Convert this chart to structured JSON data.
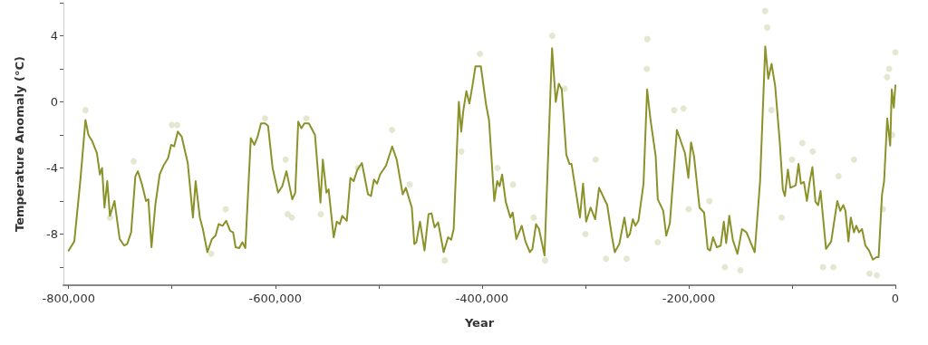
{
  "chart_data": {
    "type": "line",
    "xlabel": "Year",
    "ylabel": "Temperature Anomaly (°C)",
    "xlim": [
      -805000,
      0
    ],
    "ylim": [
      -11.1,
      6
    ],
    "xticks": [
      {
        "value": -800000,
        "label": "-800,000"
      },
      {
        "value": -700000,
        "label": null
      },
      {
        "value": -600000,
        "label": "-600,000"
      },
      {
        "value": -500000,
        "label": null
      },
      {
        "value": -400000,
        "label": "-400,000"
      },
      {
        "value": -300000,
        "label": null
      },
      {
        "value": -200000,
        "label": "-200,000"
      },
      {
        "value": -100000,
        "label": null
      },
      0
    ],
    "yticks": [
      {
        "value": 6,
        "label": null
      },
      4,
      {
        "value": 2,
        "label": null
      },
      0,
      {
        "value": -2,
        "label": null
      },
      -4,
      {
        "value": -6,
        "label": null
      },
      -8,
      {
        "value": -10,
        "label": null
      }
    ],
    "grid": false,
    "marker": "none",
    "line_style": "solid",
    "series": [
      {
        "type": "scatter",
        "color": "#e4e8d0",
        "x": [
          -783700,
          -737000,
          -695000,
          -700000,
          -662000,
          -648000,
          -610000,
          -590000,
          -588000,
          -584000,
          -570000,
          -556000,
          -520000,
          -487000,
          -470000,
          -436000,
          -420000,
          -402000,
          -385000,
          -370000,
          -350000,
          -339000,
          -332000,
          -320000,
          -300000,
          -290000,
          -280000,
          -260000,
          -240000,
          -240500,
          -230000,
          -214000,
          -205000,
          -200000,
          -180000,
          -165000,
          -150000,
          -126000,
          -124000,
          -120000,
          -110000,
          -100000,
          -90000,
          -80000,
          -70000,
          -60000,
          -55000,
          -40000,
          -25000,
          -18000,
          -12000,
          -8000,
          -6000,
          -3000,
          0,
          -760000
        ],
        "values": [
          -0.5,
          -3.6,
          -1.4,
          -1.4,
          -9.2,
          -6.5,
          -1.0,
          -3.5,
          -6.8,
          -7.0,
          -1.0,
          -6.8,
          -4.0,
          -1.7,
          -5.0,
          -9.6,
          -3.0,
          2.9,
          -4.0,
          -5.0,
          -7.0,
          -9.6,
          4.0,
          0.8,
          -8.0,
          -3.5,
          -9.5,
          -9.5,
          3.8,
          2.0,
          -8.5,
          -0.5,
          -0.4,
          -6.5,
          -6.0,
          -10.0,
          -10.2,
          5.5,
          4.5,
          -0.5,
          -7.0,
          -3.5,
          -2.5,
          -3.0,
          -10.0,
          -10.0,
          -4.5,
          -3.5,
          -10.4,
          -10.5,
          -6.5,
          1.5,
          2.0,
          -2.0,
          3.0,
          -7.0
        ]
      },
      {
        "color": "#8b922a",
        "x": [
          -800000,
          -794500,
          -788700,
          -783700,
          -780800,
          -777000,
          -772600,
          -769700,
          -767600,
          -765300,
          -762600,
          -760000,
          -755600,
          -750600,
          -746200,
          -743300,
          -739500,
          -735400,
          -733000,
          -729200,
          -725100,
          -722800,
          -719800,
          -716000,
          -711900,
          -708100,
          -703700,
          -700800,
          -697900,
          -694300,
          -690600,
          -684700,
          -679700,
          -677100,
          -673000,
          -670100,
          -665700,
          -661300,
          -657800,
          -654800,
          -651000,
          -647500,
          -643700,
          -640800,
          -638400,
          -634900,
          -631900,
          -629000,
          -623700,
          -620200,
          -617300,
          -613800,
          -609900,
          -607000,
          -602600,
          -597300,
          -593200,
          -589200,
          -583600,
          -580700,
          -577800,
          -574800,
          -571900,
          -567500,
          -561600,
          -556300,
          -554000,
          -550500,
          -548400,
          -543500,
          -540500,
          -537600,
          -535200,
          -530800,
          -527300,
          -524100,
          -520600,
          -516200,
          -510300,
          -507400,
          -504500,
          -501500,
          -498600,
          -492800,
          -486900,
          -482500,
          -476700,
          -473700,
          -467900,
          -465500,
          -463500,
          -460000,
          -455600,
          -451700,
          -448800,
          -445900,
          -442400,
          -437100,
          -432800,
          -429800,
          -427400,
          -422400,
          -420100,
          -418000,
          -415100,
          -412200,
          -409300,
          -406300,
          -401100,
          -396100,
          -393200,
          -388100,
          -385300,
          -382900,
          -380500,
          -377000,
          -372600,
          -370300,
          -366800,
          -361500,
          -358000,
          -353600,
          -351200,
          -347700,
          -344800,
          -339500,
          -332200,
          -328600,
          -325700,
          -322800,
          -318400,
          -315400,
          -313400,
          -305200,
          -302200,
          -299200,
          -294900,
          -290500,
          -286700,
          -278800,
          -274400,
          -271500,
          -267100,
          -262200,
          -259200,
          -256900,
          -254000,
          -251600,
          -248600,
          -243700,
          -240200,
          -236900,
          -231900,
          -229900,
          -224600,
          -221700,
          -218200,
          -211400,
          -203600,
          -200300,
          -197700,
          -194800,
          -189500,
          -185100,
          -181600,
          -179300,
          -176400,
          -172800,
          -169000,
          -166000,
          -163700,
          -160700,
          -157300,
          -152800,
          -148400,
          -144000,
          -140500,
          -136100,
          -130900,
          -125900,
          -123000,
          -119800,
          -116300,
          -111900,
          -108900,
          -106900,
          -104000,
          -101600,
          -96400,
          -93700,
          -91400,
          -88500,
          -85600,
          -83200,
          -80300,
          -77300,
          -74700,
          -72400,
          -67100,
          -62100,
          -56200,
          -53300,
          -50400,
          -48300,
          -45400,
          -43100,
          -40100,
          -37800,
          -35200,
          -32300,
          -29000,
          -25500,
          -21800,
          -18200,
          -16200,
          -12900,
          -10900,
          -7900,
          -5000,
          -3500,
          -1500,
          0
        ],
        "values": [
          -9.0,
          -8.45,
          -4.8,
          -1.1,
          -2.0,
          -2.4,
          -3.1,
          -4.4,
          -4.0,
          -6.4,
          -4.8,
          -6.9,
          -6.0,
          -8.3,
          -8.7,
          -8.6,
          -7.9,
          -4.5,
          -4.2,
          -4.95,
          -6.0,
          -5.9,
          -8.8,
          -6.2,
          -4.4,
          -3.85,
          -3.4,
          -2.6,
          -2.7,
          -1.8,
          -2.1,
          -3.7,
          -7.0,
          -4.8,
          -7.0,
          -7.7,
          -9.1,
          -8.3,
          -8.1,
          -7.4,
          -7.5,
          -7.2,
          -7.8,
          -7.9,
          -8.8,
          -8.85,
          -8.5,
          -8.85,
          -2.2,
          -2.6,
          -2.15,
          -1.3,
          -1.3,
          -1.45,
          -4.0,
          -5.5,
          -5.1,
          -4.2,
          -5.9,
          -5.5,
          -1.2,
          -1.6,
          -1.3,
          -1.3,
          -2.0,
          -6.1,
          -3.5,
          -5.5,
          -5.3,
          -8.2,
          -7.25,
          -7.4,
          -6.9,
          -7.2,
          -4.6,
          -4.8,
          -4.1,
          -3.7,
          -5.6,
          -5.7,
          -4.7,
          -4.95,
          -4.4,
          -3.85,
          -2.7,
          -3.5,
          -5.6,
          -5.2,
          -6.4,
          -8.6,
          -8.5,
          -7.25,
          -9.0,
          -6.8,
          -6.75,
          -7.6,
          -7.3,
          -9.1,
          -8.2,
          -8.35,
          -7.7,
          0.0,
          -1.8,
          -0.5,
          0.65,
          -0.1,
          0.95,
          2.15,
          2.15,
          -0.15,
          -1.1,
          -6.0,
          -4.8,
          -5.1,
          -4.4,
          -6.05,
          -7.0,
          -6.7,
          -8.3,
          -7.5,
          -8.45,
          -9.1,
          -8.9,
          -7.4,
          -7.7,
          -9.3,
          3.25,
          0.0,
          1.1,
          0.75,
          -3.2,
          -3.75,
          -3.75,
          -7.0,
          -4.95,
          -7.25,
          -6.4,
          -7.1,
          -5.2,
          -6.25,
          -8.1,
          -9.1,
          -8.6,
          -7.0,
          -8.2,
          -8.0,
          -7.1,
          -7.5,
          -7.2,
          -4.95,
          0.75,
          -1.1,
          -3.3,
          -5.9,
          -6.6,
          -8.1,
          -7.35,
          -1.7,
          -3.1,
          -4.6,
          -2.45,
          -3.3,
          -6.4,
          -6.7,
          -8.9,
          -9.0,
          -8.2,
          -8.8,
          -8.7,
          -7.25,
          -8.55,
          -6.9,
          -8.35,
          -9.2,
          -7.7,
          -7.9,
          -8.45,
          -9.1,
          -4.8,
          3.35,
          1.4,
          2.3,
          0.95,
          -2.4,
          -5.3,
          -5.7,
          -4.1,
          -5.2,
          -5.05,
          -3.75,
          -4.95,
          -4.85,
          -6.0,
          -4.95,
          -3.95,
          -6.05,
          -6.25,
          -5.4,
          -8.9,
          -8.45,
          -6.0,
          -6.6,
          -6.25,
          -6.6,
          -8.45,
          -7.0,
          -7.9,
          -7.5,
          -7.9,
          -7.7,
          -8.7,
          -9.0,
          -9.55,
          -9.4,
          -9.4,
          -5.6,
          -4.8,
          -1.0,
          -2.65,
          0.75,
          -0.35,
          1.0
        ]
      }
    ]
  }
}
